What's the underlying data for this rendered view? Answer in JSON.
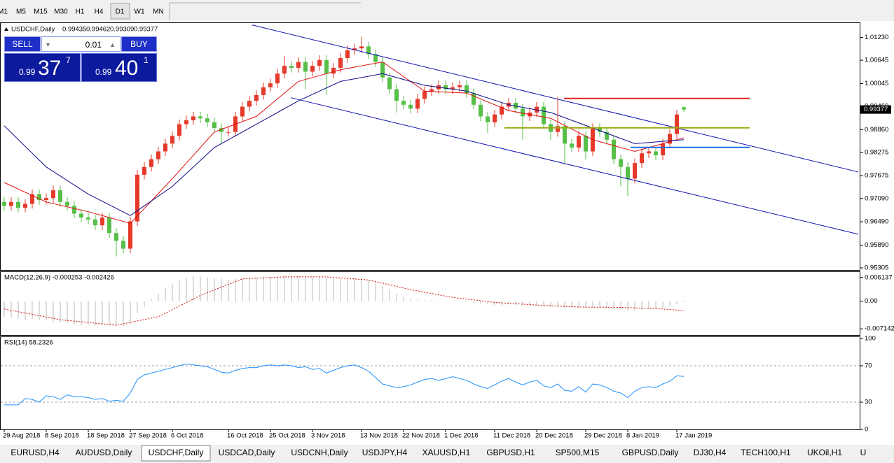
{
  "toolbar": {
    "timeframes": [
      "M1",
      "M5",
      "M15",
      "M30",
      "H1",
      "H4",
      "D1",
      "W1",
      "MN"
    ]
  },
  "trade_panel": {
    "sell": "SELL",
    "buy": "BUY",
    "lot": "0.01",
    "bid": {
      "big": "0.99",
      "pips": "37",
      "point": "7"
    },
    "ask": {
      "big": "0.99",
      "pips": "40",
      "point": "1"
    }
  },
  "chart_data": {
    "type": "candlestick",
    "symbol": "USDCHF,Daily",
    "ohlc_labels": [
      "0.99435",
      "0.99462",
      "0.99309",
      "0.99377"
    ],
    "bull_color": "#e5392a",
    "bear_color": "#56bf48",
    "ylim": [
      0.95251,
      1.016
    ],
    "yticks": [
      {
        "value": 1.0123,
        "label": "1.01230"
      },
      {
        "value": 1.00645,
        "label": "1.00645"
      },
      {
        "value": 1.00045,
        "label": "1.00045"
      },
      {
        "value": 0.9946,
        "label": "0.99460"
      },
      {
        "value": 0.9886,
        "label": "0.98860"
      },
      {
        "value": 0.98275,
        "label": "0.98275"
      },
      {
        "value": 0.97675,
        "label": "0.97675"
      },
      {
        "value": 0.9709,
        "label": "0.97090"
      },
      {
        "value": 0.9649,
        "label": "0.96490"
      },
      {
        "value": 0.9589,
        "label": "0.95890"
      },
      {
        "value": 0.95305,
        "label": "0.95305"
      }
    ],
    "current_price": {
      "value": 0.99377,
      "label": "0.99377"
    },
    "categories": [
      "29 Aug 2018",
      null,
      null,
      null,
      null,
      null,
      "8 Sep 2018",
      null,
      null,
      null,
      null,
      null,
      "18 Sep 2018",
      null,
      null,
      null,
      null,
      null,
      "27 Sep 2018",
      null,
      null,
      null,
      null,
      null,
      "6 Oct 2018",
      null,
      null,
      null,
      null,
      null,
      null,
      null,
      "16 Oct 2018",
      null,
      null,
      null,
      null,
      null,
      "25 Oct 2018",
      null,
      null,
      null,
      null,
      null,
      "3 Nov 2018",
      null,
      null,
      null,
      null,
      null,
      null,
      "13 Nov 2018",
      null,
      null,
      null,
      null,
      null,
      "22 Nov 2018",
      null,
      null,
      null,
      null,
      null,
      "1 Dec 2018",
      null,
      null,
      null,
      null,
      null,
      null,
      "11 Dec 2018",
      null,
      null,
      null,
      null,
      null,
      "20 Dec 2018",
      null,
      null,
      null,
      null,
      null,
      null,
      "29 Dec 2018",
      null,
      null,
      null,
      null,
      null,
      "8 Jan 2019",
      null,
      null,
      null,
      null,
      null,
      null,
      "17 Jan 2019",
      null
    ],
    "candles": [
      [
        0.97,
        0.9712,
        0.9678,
        0.969
      ],
      [
        0.969,
        0.9712,
        0.9678,
        0.97
      ],
      [
        0.97,
        0.9712,
        0.9673,
        0.9685
      ],
      [
        0.9685,
        0.9707,
        0.9673,
        0.9695
      ],
      [
        0.9695,
        0.9732,
        0.9683,
        0.972
      ],
      [
        0.972,
        0.9732,
        0.9693,
        0.9705
      ],
      [
        0.9705,
        0.9722,
        0.9693,
        0.971
      ],
      [
        0.971,
        0.9742,
        0.9698,
        0.973
      ],
      [
        0.973,
        0.9742,
        0.9688,
        0.97
      ],
      [
        0.97,
        0.9712,
        0.9678,
        0.969
      ],
      [
        0.969,
        0.9702,
        0.9658,
        0.967
      ],
      [
        0.967,
        0.9682,
        0.9648,
        0.966
      ],
      [
        0.966,
        0.9672,
        0.9643,
        0.9655
      ],
      [
        0.9655,
        0.9667,
        0.9628,
        0.964
      ],
      [
        0.964,
        0.9672,
        0.9628,
        0.966
      ],
      [
        0.966,
        0.9672,
        0.9608,
        0.962
      ],
      [
        0.962,
        0.9632,
        0.956,
        0.96
      ],
      [
        0.96,
        0.9612,
        0.9568,
        0.958
      ],
      [
        0.958,
        0.9662,
        0.9568,
        0.965
      ],
      [
        0.965,
        0.9782,
        0.9638,
        0.977
      ],
      [
        0.977,
        0.9802,
        0.9758,
        0.979
      ],
      [
        0.979,
        0.9822,
        0.9778,
        0.981
      ],
      [
        0.981,
        0.9842,
        0.9798,
        0.983
      ],
      [
        0.983,
        0.9862,
        0.9818,
        0.985
      ],
      [
        0.985,
        0.9882,
        0.9838,
        0.987
      ],
      [
        0.987,
        0.9912,
        0.9858,
        0.99
      ],
      [
        0.99,
        0.9922,
        0.9888,
        0.991
      ],
      [
        0.991,
        0.9932,
        0.9898,
        0.992
      ],
      [
        0.992,
        0.9932,
        0.9903,
        0.9915
      ],
      [
        0.9915,
        0.9927,
        0.9893,
        0.9905
      ],
      [
        0.9905,
        0.9917,
        0.9878,
        0.989
      ],
      [
        0.989,
        0.9902,
        0.985,
        0.988
      ],
      [
        0.988,
        0.9892,
        0.9868,
        0.988
      ],
      [
        0.988,
        0.9932,
        0.9868,
        0.992
      ],
      [
        0.992,
        0.9957,
        0.9908,
        0.9945
      ],
      [
        0.9945,
        0.9972,
        0.9933,
        0.996
      ],
      [
        0.996,
        0.9987,
        0.9948,
        0.9975
      ],
      [
        0.9975,
        1.0007,
        0.9963,
        0.9995
      ],
      [
        0.9995,
        1.0017,
        0.9983,
        1.0005
      ],
      [
        1.0005,
        1.0042,
        0.9993,
        1.003
      ],
      [
        1.003,
        1.0075,
        1.0018,
        1.005
      ],
      [
        1.005,
        1.0062,
        1.0033,
        1.0045
      ],
      [
        1.0045,
        1.0072,
        1.0033,
        1.006
      ],
      [
        1.006,
        1.0072,
        0.999,
        1.0035
      ],
      [
        1.0035,
        1.0062,
        1.0023,
        1.005
      ],
      [
        1.005,
        1.0077,
        1.0038,
        1.0065
      ],
      [
        1.0065,
        1.0077,
        0.9975,
        1.003
      ],
      [
        1.003,
        1.0057,
        1.0018,
        1.0045
      ],
      [
        1.0045,
        1.0082,
        1.0033,
        1.007
      ],
      [
        1.007,
        1.0102,
        1.0058,
        1.009
      ],
      [
        1.009,
        1.0107,
        1.0078,
        1.0095
      ],
      [
        1.0095,
        1.0125,
        1.0083,
        1.01
      ],
      [
        1.01,
        1.0112,
        1.0068,
        1.008
      ],
      [
        1.008,
        1.0092,
        1.0048,
        1.006
      ],
      [
        1.006,
        1.0072,
        1.0008,
        1.002
      ],
      [
        1.002,
        1.0032,
        0.9978,
        0.999
      ],
      [
        0.999,
        1.0002,
        0.993,
        0.996
      ],
      [
        0.996,
        0.9972,
        0.9938,
        0.995
      ],
      [
        0.995,
        0.9962,
        0.9928,
        0.994
      ],
      [
        0.994,
        0.9977,
        0.9928,
        0.9965
      ],
      [
        0.9965,
        0.9997,
        0.9953,
        0.9985
      ],
      [
        0.9985,
        1.0002,
        0.9973,
        0.999
      ],
      [
        0.999,
        1.0012,
        0.9978,
        1.0
      ],
      [
        1.0,
        1.0012,
        0.9978,
        0.999
      ],
      [
        0.999,
        1.0007,
        0.9978,
        0.9995
      ],
      [
        0.9995,
        1.0012,
        0.9983,
        1.0
      ],
      [
        1.0,
        1.0012,
        0.9968,
        0.998
      ],
      [
        0.998,
        0.9992,
        0.9938,
        0.995
      ],
      [
        0.995,
        0.9962,
        0.9908,
        0.992
      ],
      [
        0.992,
        0.9932,
        0.9878,
        0.9905
      ],
      [
        0.9905,
        0.9937,
        0.9893,
        0.9925
      ],
      [
        0.9925,
        0.9957,
        0.9913,
        0.9945
      ],
      [
        0.9945,
        0.9967,
        0.9933,
        0.9955
      ],
      [
        0.9955,
        0.9967,
        0.9928,
        0.994
      ],
      [
        0.994,
        0.9952,
        0.986,
        0.992
      ],
      [
        0.992,
        0.9942,
        0.9908,
        0.993
      ],
      [
        0.993,
        0.9957,
        0.9918,
        0.9945
      ],
      [
        0.9945,
        0.9957,
        0.9888,
        0.99
      ],
      [
        0.99,
        0.9912,
        0.986,
        0.988
      ],
      [
        0.988,
        0.997,
        0.9868,
        0.9895
      ],
      [
        0.9895,
        0.9907,
        0.98,
        0.985
      ],
      [
        0.985,
        0.9862,
        0.9828,
        0.984
      ],
      [
        0.984,
        0.9882,
        0.9828,
        0.987
      ],
      [
        0.987,
        0.9882,
        0.981,
        0.983
      ],
      [
        0.983,
        0.9902,
        0.9818,
        0.989
      ],
      [
        0.989,
        0.9902,
        0.9868,
        0.988
      ],
      [
        0.988,
        0.9892,
        0.9848,
        0.986
      ],
      [
        0.986,
        0.9872,
        0.9798,
        0.981
      ],
      [
        0.981,
        0.9822,
        0.974,
        0.979
      ],
      [
        0.979,
        0.9802,
        0.9715,
        0.976
      ],
      [
        0.976,
        0.9812,
        0.9748,
        0.98
      ],
      [
        0.98,
        0.9837,
        0.9788,
        0.9825
      ],
      [
        0.9825,
        0.9842,
        0.9813,
        0.983
      ],
      [
        0.983,
        0.9842,
        0.9808,
        0.982
      ],
      [
        0.982,
        0.9862,
        0.9808,
        0.985
      ],
      [
        0.985,
        0.9887,
        0.9838,
        0.9875
      ],
      [
        0.9875,
        0.9937,
        0.9863,
        0.9925
      ],
      [
        0.99435,
        0.99462,
        0.99309,
        0.99377
      ]
    ],
    "ma_lines": [
      {
        "color": "#e01010",
        "x": [
          0,
          6,
          12,
          18,
          24,
          30,
          36,
          42,
          48,
          54,
          60,
          66,
          72,
          78,
          84,
          90,
          97
        ],
        "values": [
          0.975,
          0.97,
          0.9675,
          0.9645,
          0.976,
          0.988,
          0.992,
          1.001,
          1.004,
          1.006,
          0.9985,
          0.998,
          0.9935,
          0.9915,
          0.986,
          0.983,
          0.9865
        ]
      },
      {
        "color": "#0a0a8a",
        "x": [
          0,
          6,
          12,
          18,
          24,
          30,
          36,
          42,
          48,
          54,
          60,
          66,
          72,
          78,
          84,
          90,
          97
        ],
        "values": [
          0.9896,
          0.979,
          0.972,
          0.9665,
          0.974,
          0.984,
          0.99,
          0.996,
          1.001,
          1.003,
          1.0,
          0.9985,
          0.995,
          0.993,
          0.989,
          0.985,
          0.986
        ]
      }
    ],
    "trendlines": [
      {
        "color": "#1010b0",
        "x": [
          35.4,
          121.9
        ],
        "values": [
          1.0155,
          0.9777
        ]
      },
      {
        "color": "#1010b0",
        "x": [
          40.9,
          121.9
        ],
        "values": [
          0.99681,
          0.9617
        ]
      }
    ],
    "hlines": [
      {
        "color": "#e02020",
        "x": [
          79.9,
          106.4
        ],
        "value": 0.99663
      },
      {
        "color": "#9aaa10",
        "x": [
          71.4,
          106.4
        ],
        "value": 0.98907
      },
      {
        "color": "#2070e0",
        "x": [
          89.4,
          106.4
        ],
        "value": 0.98403
      }
    ],
    "macd": {
      "label": "MACD(12,26,9) -0.000253 -0.002426",
      "ylim": [
        -0.00856,
        0.00755
      ],
      "yticks": [
        0.006137,
        {
          "value": 0,
          "label": "0.00"
        },
        -0.007142
      ],
      "histogram_color": "#b8b8b8",
      "signal_color": "#d01010",
      "histogram": [
        -0.004,
        -0.0042,
        -0.0045,
        -0.0048,
        -0.0046,
        -0.0048,
        -0.005,
        -0.0052,
        -0.0055,
        -0.0057,
        -0.006,
        -0.0062,
        -0.0062,
        -0.0063,
        -0.0062,
        -0.0062,
        -0.0063,
        -0.0064,
        -0.006,
        -0.003,
        -0.0015,
        0.0005,
        0.002,
        0.0035,
        0.0045,
        0.0055,
        0.006,
        0.0065,
        0.0065,
        0.0062,
        0.006,
        0.0058,
        0.0056,
        0.0058,
        0.006,
        0.0062,
        0.0062,
        0.0063,
        0.0064,
        0.0065,
        0.0066,
        0.0065,
        0.0066,
        0.0064,
        0.0063,
        0.0063,
        0.006,
        0.0058,
        0.0058,
        0.006,
        0.0062,
        0.006,
        0.0056,
        0.005,
        0.004,
        0.003,
        0.002,
        0.001,
        0.0005,
        0.0003,
        0.0002,
        0.0002,
        0.0002,
        0.0001,
        0.0001,
        0,
        -0.0002,
        -0.0004,
        -0.0006,
        -0.0008,
        -0.001,
        -0.001,
        -0.0009,
        -0.001,
        -0.0012,
        -0.0012,
        -0.0011,
        -0.0013,
        -0.0015,
        -0.0015,
        -0.0017,
        -0.0018,
        -0.0017,
        -0.0018,
        -0.0016,
        -0.0016,
        -0.0017,
        -0.0019,
        -0.0021,
        -0.0024,
        -0.0024,
        -0.0022,
        -0.002,
        -0.0019,
        -0.0017,
        -0.0013,
        -0.0008,
        -0.000253
      ],
      "signal": {
        "x": [
          0,
          8,
          16,
          22,
          28,
          34,
          40,
          46,
          52,
          58,
          64,
          70,
          76,
          82,
          88,
          94,
          97
        ],
        "values": [
          -0.002,
          -0.0048,
          -0.0062,
          -0.004,
          0.0015,
          0.0058,
          0.0063,
          0.0063,
          0.0055,
          0.003,
          0.001,
          -0.0003,
          -0.001,
          -0.0015,
          -0.0016,
          -0.002,
          -0.002426
        ]
      }
    },
    "rsi": {
      "label": "RSI(14) 58.2326",
      "ylim": [
        0,
        101.5
      ],
      "yticks": [
        100,
        70,
        30,
        0
      ],
      "levels": [
        70,
        30
      ],
      "color": "#1e90ff",
      "values": [
        27,
        27,
        27,
        34,
        33,
        30,
        37,
        36,
        33,
        38,
        36,
        36,
        35,
        33,
        34,
        31,
        32,
        31,
        40,
        55,
        60,
        62,
        64,
        66,
        68,
        70,
        72,
        71,
        70,
        69,
        66,
        63,
        62,
        65,
        67,
        68,
        68,
        70,
        71,
        70,
        71,
        70,
        68,
        69,
        66,
        67,
        62,
        65,
        68,
        70,
        71,
        68,
        64,
        57,
        50,
        48,
        46,
        47,
        49,
        52,
        55,
        56,
        54,
        56,
        58,
        56,
        54,
        50,
        47,
        45,
        49,
        53,
        56,
        52,
        49,
        52,
        54,
        48,
        46,
        50,
        43,
        42,
        47,
        41,
        50,
        49,
        46,
        42,
        40,
        35,
        42,
        46,
        47,
        46,
        50,
        53,
        59,
        58.2326
      ]
    }
  },
  "tabs": [
    "EURUSD,H4",
    "AUDUSD,Daily",
    "USDCHF,Daily",
    "USDCAD,Daily",
    "USDCNH,Daily",
    "USDJPY,H4",
    "XAUUSD,H1",
    "GBPUSD,H1",
    "SP500,M15",
    "GBPUSD,Daily",
    "DJ30,H4",
    "TECH100,H1",
    "UKOil,H1",
    "U"
  ]
}
